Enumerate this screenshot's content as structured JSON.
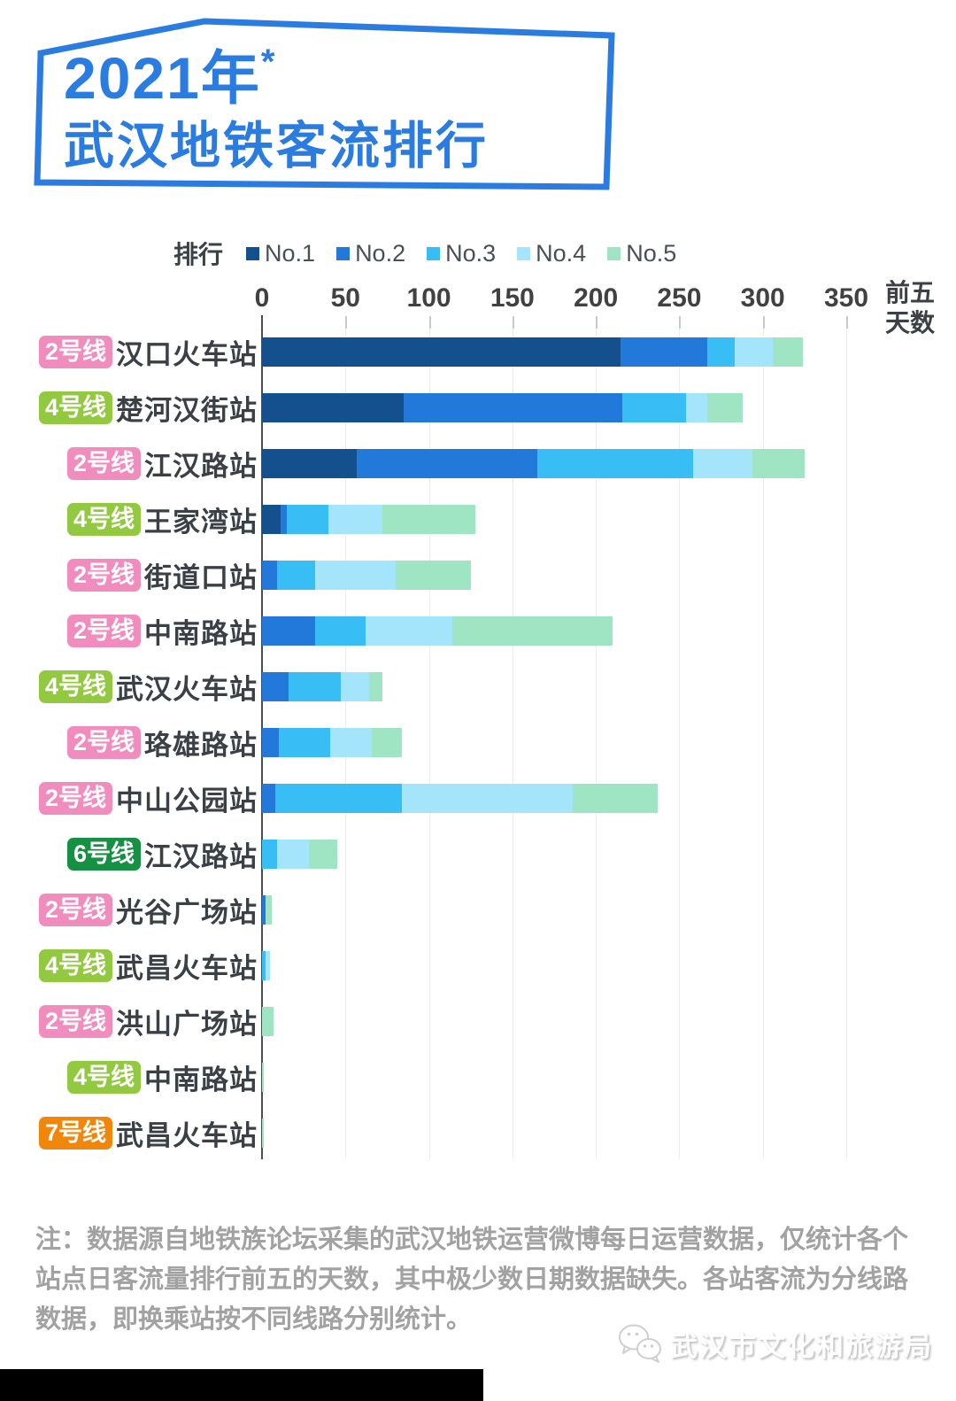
{
  "title": {
    "line1": "2021年",
    "asterisk": "*",
    "line2": "武汉地铁客流排行"
  },
  "accent_color": "#2b7ce0",
  "note": "注：数据源自地铁族论坛采集的武汉地铁运营微博每日运营数据，仅统计各个站点日客流量排行前五的天数，其中极少数日期数据缺失。各站客流为分线路数据，即换乘站按不同线路分别统计。",
  "footer": {
    "brand": "武汉市文化和旅游局",
    "logo": "wechat-icon"
  },
  "chart_data": {
    "type": "bar",
    "orientation": "horizontal",
    "stacked": true,
    "title": "2021年* 武汉地铁客流排行",
    "legend_title": "排行",
    "legend": [
      "No.1",
      "No.2",
      "No.3",
      "No.4",
      "No.5"
    ],
    "series_colors": [
      "#15508e",
      "#2379d9",
      "#38bdf5",
      "#a5e5fb",
      "#9fe4c3"
    ],
    "xlabel_line1": "前五",
    "xlabel_line2": "天数",
    "xlim": [
      0,
      350
    ],
    "xticks": [
      0,
      50,
      100,
      150,
      200,
      250,
      300,
      350
    ],
    "grid": true,
    "legend_position": "top",
    "line_colors": {
      "2号线": "#f18cbe",
      "4号线": "#93c940",
      "6号线": "#169042",
      "7号线": "#f0860a"
    },
    "rows": [
      {
        "line": "2号线",
        "station": "汉口火车站",
        "values": [
          215,
          52,
          16,
          23,
          18
        ]
      },
      {
        "line": "4号线",
        "station": "楚河汉街站",
        "values": [
          85,
          131,
          38,
          13,
          21
        ]
      },
      {
        "line": "2号线",
        "station": "江汉路站",
        "values": [
          57,
          108,
          93,
          36,
          31
        ]
      },
      {
        "line": "4号线",
        "station": "王家湾站",
        "values": [
          11,
          4,
          25,
          32,
          56
        ]
      },
      {
        "line": "2号线",
        "station": "街道口站",
        "values": [
          0,
          9,
          23,
          48,
          45
        ]
      },
      {
        "line": "2号线",
        "station": "中南路站",
        "values": [
          0,
          32,
          30,
          52,
          96
        ]
      },
      {
        "line": "4号线",
        "station": "武汉火车站",
        "values": [
          0,
          16,
          31,
          17,
          8
        ]
      },
      {
        "line": "2号线",
        "station": "珞雄路站",
        "values": [
          0,
          10,
          31,
          25,
          18
        ]
      },
      {
        "line": "2号线",
        "station": "中山公园站",
        "values": [
          0,
          8,
          76,
          102,
          51
        ]
      },
      {
        "line": "6号线",
        "station": "江汉路站",
        "values": [
          0,
          0,
          9,
          19,
          17
        ]
      },
      {
        "line": "2号线",
        "station": "光谷广场站",
        "values": [
          0,
          2,
          0,
          0,
          4
        ]
      },
      {
        "line": "4号线",
        "station": "武昌火车站",
        "values": [
          0,
          0,
          2,
          3,
          0
        ]
      },
      {
        "line": "2号线",
        "station": "洪山广场站",
        "values": [
          0,
          0,
          0,
          0,
          7
        ]
      },
      {
        "line": "4号线",
        "station": "中南路站",
        "values": [
          0,
          0,
          0,
          0,
          1
        ]
      },
      {
        "line": "7号线",
        "station": "武昌火车站",
        "values": [
          0,
          0,
          0,
          0,
          1
        ]
      }
    ]
  }
}
